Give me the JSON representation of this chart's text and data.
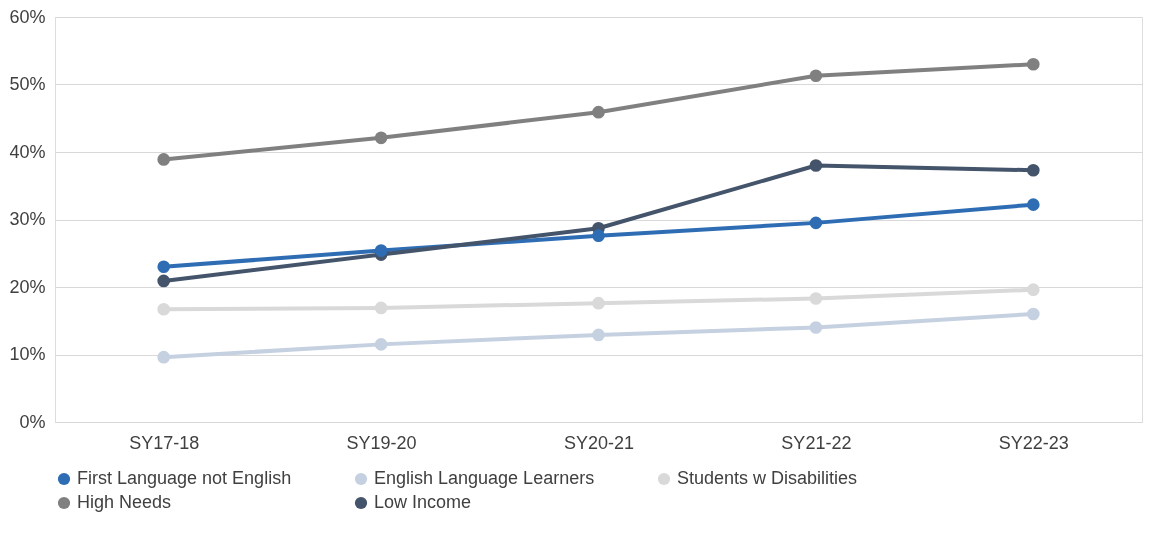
{
  "chart_data": {
    "type": "line",
    "categories": [
      "SY17-18",
      "SY19-20",
      "SY20-21",
      "SY21-22",
      "SY22-23"
    ],
    "series": [
      {
        "name": "First Language not English",
        "color": "#2e6db4",
        "values": [
          23.0,
          25.4,
          27.6,
          29.5,
          32.2
        ]
      },
      {
        "name": "English Language Learners",
        "color": "#c5d1e0",
        "values": [
          9.6,
          11.5,
          12.9,
          14.0,
          16.0
        ]
      },
      {
        "name": "Students w Disabilities",
        "color": "#d9d9d9",
        "values": [
          16.7,
          16.9,
          17.6,
          18.3,
          19.6
        ]
      },
      {
        "name": "High Needs",
        "color": "#808080",
        "values": [
          38.9,
          42.1,
          45.9,
          51.3,
          53.0
        ]
      },
      {
        "name": "Low Income",
        "color": "#44546a",
        "values": [
          20.9,
          24.8,
          28.7,
          38.0,
          37.3
        ]
      }
    ],
    "ylim": [
      0,
      60
    ],
    "yticks": [
      {
        "value": 0,
        "label": "0%"
      },
      {
        "value": 10,
        "label": "10%"
      },
      {
        "value": 20,
        "label": "20%"
      },
      {
        "value": 30,
        "label": "30%"
      },
      {
        "value": 40,
        "label": "40%"
      },
      {
        "value": 50,
        "label": "50%"
      },
      {
        "value": 60,
        "label": "60%"
      }
    ],
    "grid": "y",
    "legend": "bottom",
    "marker": "circle",
    "line_style": "solid"
  }
}
